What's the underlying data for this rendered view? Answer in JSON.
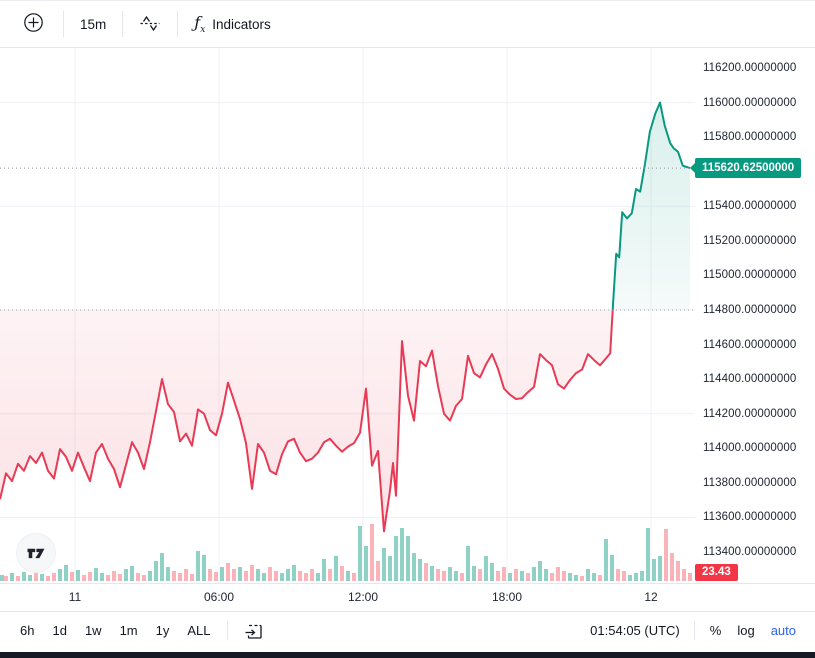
{
  "toolbar_top": {
    "crosshair_tooltip": "crosshair",
    "interval": "15m",
    "indicators_label": "Indicators",
    "fx_glyph": "ƒ"
  },
  "toolbar_bottom": {
    "ranges": [
      "6h",
      "1d",
      "1w",
      "1m",
      "1y",
      "ALL"
    ],
    "clock": "01:54:05 (UTC)",
    "percent_label": "%",
    "log_label": "log",
    "auto_label": "auto"
  },
  "colors": {
    "up": "#089981",
    "down": "#e93a55",
    "badge_down": "#f23645",
    "auto_blue": "#2962ff",
    "grid": "#eef1f7",
    "dotted": "#9aa0ab",
    "vol_up": "rgba(8,153,129,0.45)",
    "vol_down": "rgba(242,54,69,0.38)"
  },
  "chart_data": {
    "type": "area",
    "style": "baseline",
    "interval": "15m",
    "baseline_price": 114800,
    "current_price": 115620.625,
    "current_price_label": "115620.62500000",
    "last_volume": 23.43,
    "last_volume_label": "23.43",
    "ylim": [
      113230,
      116315
    ],
    "price_decimals": 8,
    "y_axis_values": [
      116200,
      116000,
      115800,
      115400,
      115200,
      115000,
      114800,
      114600,
      114400,
      114200,
      114000,
      113800,
      113600,
      113400
    ],
    "gridline_prices": [
      116000,
      115400,
      114800,
      114200,
      113600
    ],
    "x_axis_labels": [
      {
        "pos": 12.5,
        "label": "11"
      },
      {
        "pos": 36.5,
        "label": "06:00"
      },
      {
        "pos": 60.5,
        "label": "12:00"
      },
      {
        "pos": 84.5,
        "label": "18:00"
      },
      {
        "pos": 108.5,
        "label": "12"
      }
    ],
    "price_points": [
      [
        0,
        113705
      ],
      [
        1,
        113855
      ],
      [
        2,
        113810
      ],
      [
        3,
        113910
      ],
      [
        4,
        113870
      ],
      [
        5,
        113955
      ],
      [
        6,
        113915
      ],
      [
        7,
        113975
      ],
      [
        8,
        113870
      ],
      [
        9,
        113825
      ],
      [
        10,
        113995
      ],
      [
        11,
        113950
      ],
      [
        12,
        113870
      ],
      [
        13,
        113975
      ],
      [
        14,
        113890
      ],
      [
        15,
        113810
      ],
      [
        16,
        113975
      ],
      [
        17,
        114025
      ],
      [
        18,
        113940
      ],
      [
        19,
        113880
      ],
      [
        20,
        113775
      ],
      [
        21,
        113905
      ],
      [
        22,
        114035
      ],
      [
        23,
        113975
      ],
      [
        24,
        113880
      ],
      [
        25,
        114035
      ],
      [
        26,
        114215
      ],
      [
        27,
        114400
      ],
      [
        28,
        114255
      ],
      [
        29,
        114210
      ],
      [
        30,
        114040
      ],
      [
        31,
        114085
      ],
      [
        32,
        114015
      ],
      [
        33,
        114225
      ],
      [
        34,
        114200
      ],
      [
        35,
        114105
      ],
      [
        36,
        114075
      ],
      [
        37,
        114200
      ],
      [
        38,
        114380
      ],
      [
        39,
        114275
      ],
      [
        40,
        114170
      ],
      [
        41,
        114030
      ],
      [
        42,
        113765
      ],
      [
        43,
        114025
      ],
      [
        44,
        113975
      ],
      [
        45,
        113870
      ],
      [
        46,
        113850
      ],
      [
        47,
        113965
      ],
      [
        48,
        114040
      ],
      [
        49,
        114055
      ],
      [
        50,
        113975
      ],
      [
        51,
        113925
      ],
      [
        52,
        113940
      ],
      [
        53,
        113975
      ],
      [
        54,
        114035
      ],
      [
        55,
        114055
      ],
      [
        56,
        114015
      ],
      [
        57,
        113980
      ],
      [
        58,
        114010
      ],
      [
        59,
        114030
      ],
      [
        60,
        114090
      ],
      [
        61,
        114345
      ],
      [
        62,
        113900
      ],
      [
        63,
        113985
      ],
      [
        64,
        113520
      ],
      [
        65,
        113755
      ],
      [
        65.5,
        113915
      ],
      [
        66,
        113725
      ],
      [
        67,
        114620
      ],
      [
        68,
        114305
      ],
      [
        69,
        114160
      ],
      [
        70,
        114505
      ],
      [
        71,
        114475
      ],
      [
        72,
        114565
      ],
      [
        73,
        114360
      ],
      [
        74,
        114200
      ],
      [
        75,
        114160
      ],
      [
        76,
        114245
      ],
      [
        77,
        114285
      ],
      [
        78,
        114535
      ],
      [
        79,
        114435
      ],
      [
        80,
        114410
      ],
      [
        81,
        114485
      ],
      [
        82,
        114545
      ],
      [
        83,
        114460
      ],
      [
        84,
        114345
      ],
      [
        85,
        114310
      ],
      [
        86,
        114285
      ],
      [
        87,
        114290
      ],
      [
        88,
        114325
      ],
      [
        89,
        114355
      ],
      [
        90,
        114545
      ],
      [
        91,
        114510
      ],
      [
        92,
        114480
      ],
      [
        93,
        114370
      ],
      [
        94,
        114345
      ],
      [
        95,
        114395
      ],
      [
        96,
        114435
      ],
      [
        97,
        114455
      ],
      [
        98,
        114545
      ],
      [
        99,
        114510
      ],
      [
        100,
        114480
      ],
      [
        101,
        114520
      ],
      [
        101.7,
        114550
      ],
      [
        102.2,
        114850
      ],
      [
        102.7,
        115125
      ],
      [
        103.2,
        115105
      ],
      [
        103.7,
        115365
      ],
      [
        104.5,
        115330
      ],
      [
        105.3,
        115360
      ],
      [
        106,
        115500
      ],
      [
        106.7,
        115485
      ],
      [
        107.5,
        115645
      ],
      [
        108.3,
        115830
      ],
      [
        109.2,
        115935
      ],
      [
        110,
        116000
      ],
      [
        110.8,
        115865
      ],
      [
        111.7,
        115765
      ],
      [
        112.3,
        115735
      ],
      [
        113,
        115715
      ],
      [
        113.8,
        115635
      ],
      [
        115,
        115620.625
      ]
    ],
    "volume_signed": [
      17.6,
      -14.7,
      23.4,
      -14.7,
      26.4,
      17.6,
      -29.3,
      20.5,
      -14.7,
      -23.4,
      35.2,
      47.0,
      -26.4,
      32.2,
      -17.6,
      -26.4,
      38.1,
      23.4,
      -17.6,
      -29.3,
      -20.5,
      35.2,
      44.0,
      -23.4,
      -17.6,
      29.3,
      58.6,
      82.0,
      41.0,
      -29.3,
      -23.4,
      -35.2,
      -20.5,
      87.9,
      76.2,
      -35.2,
      -26.4,
      41.0,
      -52.7,
      -35.2,
      41.0,
      -29.3,
      -46.9,
      35.2,
      23.4,
      -41.0,
      -29.3,
      23.4,
      35.2,
      46.9,
      -29.3,
      -23.4,
      -35.2,
      23.4,
      64.5,
      -35.2,
      73.3,
      -44.0,
      29.3,
      -23.4,
      161.2,
      102.6,
      -167.0,
      -58.6,
      96.7,
      73.3,
      131.9,
      155.3,
      131.9,
      82.0,
      64.5,
      -52.7,
      44.0,
      -35.2,
      -29.3,
      41.0,
      29.3,
      -23.4,
      102.6,
      44.0,
      -35.2,
      73.3,
      52.7,
      -29.3,
      -41.0,
      23.4,
      -35.2,
      29.3,
      -23.4,
      41.0,
      58.6,
      35.2,
      -23.4,
      -41.0,
      -29.3,
      23.4,
      17.6,
      -14.7,
      35.2,
      23.4,
      -17.6,
      123.1,
      76.2,
      -35.2,
      -29.3,
      17.6,
      23.4,
      29.3,
      155.3,
      64.5,
      73.3,
      -152.4,
      -82.0,
      -58.6,
      -35.2,
      -23.43
    ]
  }
}
